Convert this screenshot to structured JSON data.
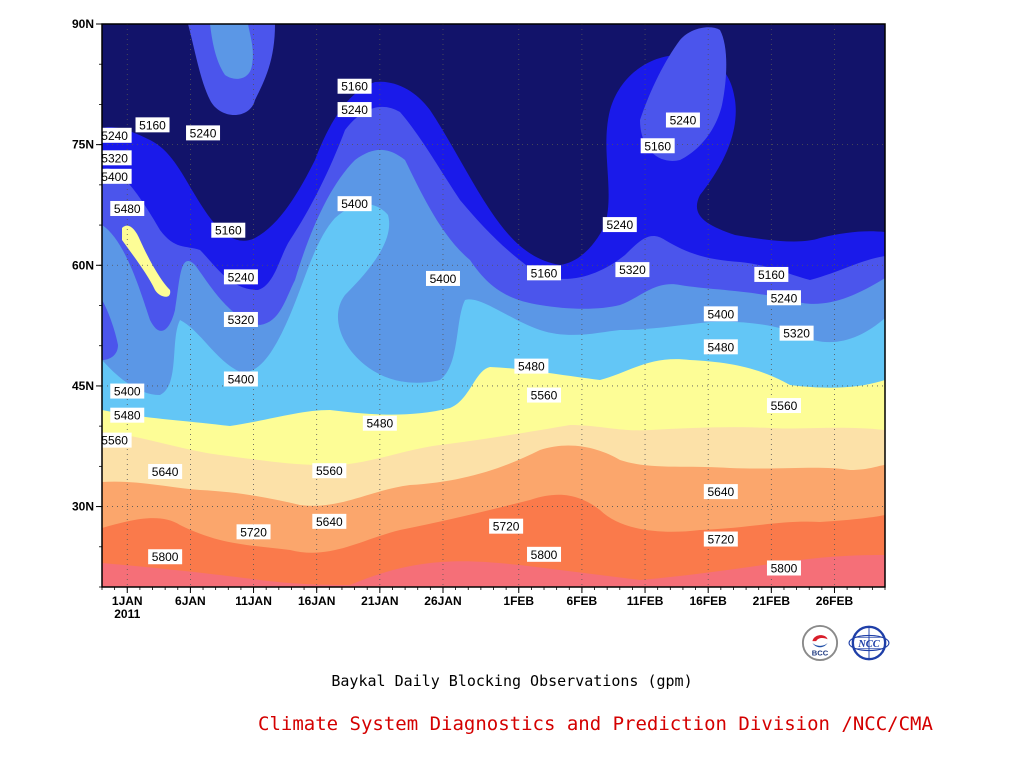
{
  "chart_data": {
    "type": "heatmap",
    "title": "Baykal Daily Blocking Observations (gpm)",
    "credit": "Climate System Diagnostics and Prediction Division /NCC/CMA",
    "xlabel": "",
    "ylabel": "",
    "x_range": [
      "2010-12-30",
      "2011-03-02"
    ],
    "x_ticks": [
      "1JAN",
      "6JAN",
      "11JAN",
      "16JAN",
      "21JAN",
      "26JAN",
      "1FEB",
      "6FEB",
      "11FEB",
      "16FEB",
      "21FEB",
      "26FEB"
    ],
    "x_tick_year": "2011",
    "y_ticks": [
      "30N",
      "45N",
      "60N",
      "75N",
      "90N"
    ],
    "y_range": [
      20,
      90
    ],
    "grid": "dotted",
    "levels": [
      5160,
      5240,
      5320,
      5400,
      5480,
      5560,
      5640,
      5720,
      5800
    ],
    "level_colors": [
      "#12136a",
      "#1a1aea",
      "#4b55ec",
      "#5b97e6",
      "#63c6f6",
      "#fdfd96",
      "#fce1a8",
      "#fba66c",
      "#fa7a4b",
      "#f56f78"
    ],
    "contour_labels": [
      {
        "text": "5160",
        "date": "2011-01-03",
        "lat": 77.4
      },
      {
        "text": "5240",
        "date": "2010-12-31",
        "lat": 76.1
      },
      {
        "text": "5320",
        "date": "2010-12-31",
        "lat": 73.3
      },
      {
        "text": "5400",
        "date": "2010-12-31",
        "lat": 71.0
      },
      {
        "text": "5480",
        "date": "2011-01-01",
        "lat": 67.0
      },
      {
        "text": "5240",
        "date": "2011-01-07",
        "lat": 76.4
      },
      {
        "text": "5160",
        "date": "2011-01-09",
        "lat": 64.3
      },
      {
        "text": "5240",
        "date": "2011-01-10",
        "lat": 58.5
      },
      {
        "text": "5320",
        "date": "2011-01-10",
        "lat": 53.2
      },
      {
        "text": "5400",
        "date": "2011-01-10",
        "lat": 45.8
      },
      {
        "text": "5160",
        "date": "2011-01-19",
        "lat": 82.2
      },
      {
        "text": "5240",
        "date": "2011-01-19",
        "lat": 79.3
      },
      {
        "text": "5400",
        "date": "2011-01-19",
        "lat": 67.6
      },
      {
        "text": "5400",
        "date": "2011-01-26",
        "lat": 58.3
      },
      {
        "text": "5160",
        "date": "2011-02-03",
        "lat": 59.0
      },
      {
        "text": "5480",
        "date": "2011-02-02",
        "lat": 47.4
      },
      {
        "text": "5560",
        "date": "2011-02-03",
        "lat": 43.8
      },
      {
        "text": "5240",
        "date": "2011-02-09",
        "lat": 65.0
      },
      {
        "text": "5320",
        "date": "2011-02-10",
        "lat": 59.4
      },
      {
        "text": "5240",
        "date": "2011-02-14",
        "lat": 78.0
      },
      {
        "text": "5160",
        "date": "2011-02-12",
        "lat": 74.8
      },
      {
        "text": "5400",
        "date": "2011-02-17",
        "lat": 53.9
      },
      {
        "text": "5480",
        "date": "2011-02-17",
        "lat": 49.8
      },
      {
        "text": "5160",
        "date": "2011-02-21",
        "lat": 58.8
      },
      {
        "text": "5240",
        "date": "2011-02-22",
        "lat": 55.9
      },
      {
        "text": "5320",
        "date": "2011-02-23",
        "lat": 51.5
      },
      {
        "text": "5560",
        "date": "2011-02-22",
        "lat": 42.5
      },
      {
        "text": "5640",
        "date": "2011-02-17",
        "lat": 31.8
      },
      {
        "text": "5720",
        "date": "2011-02-17",
        "lat": 25.9
      },
      {
        "text": "5800",
        "date": "2011-02-22",
        "lat": 22.3
      },
      {
        "text": "5400",
        "date": "2011-01-01",
        "lat": 44.3
      },
      {
        "text": "5480",
        "date": "2011-01-01",
        "lat": 41.3
      },
      {
        "text": "5560",
        "date": "2010-12-31",
        "lat": 38.2
      },
      {
        "text": "5640",
        "date": "2011-01-04",
        "lat": 34.3
      },
      {
        "text": "5800",
        "date": "2011-01-04",
        "lat": 23.7
      },
      {
        "text": "5480",
        "date": "2011-01-21",
        "lat": 40.3
      },
      {
        "text": "5560",
        "date": "2011-01-17",
        "lat": 34.4
      },
      {
        "text": "5640",
        "date": "2011-01-17",
        "lat": 28.1
      },
      {
        "text": "5720",
        "date": "2011-01-11",
        "lat": 26.8
      },
      {
        "text": "5720",
        "date": "2011-01-31",
        "lat": 27.5
      },
      {
        "text": "5800",
        "date": "2011-02-03",
        "lat": 24.0
      }
    ]
  },
  "logos": {
    "bcc": {
      "label": "BCC",
      "icon": "bcc-logo-icon"
    },
    "ncc": {
      "label": "NCC",
      "icon": "ncc-logo-icon"
    }
  }
}
